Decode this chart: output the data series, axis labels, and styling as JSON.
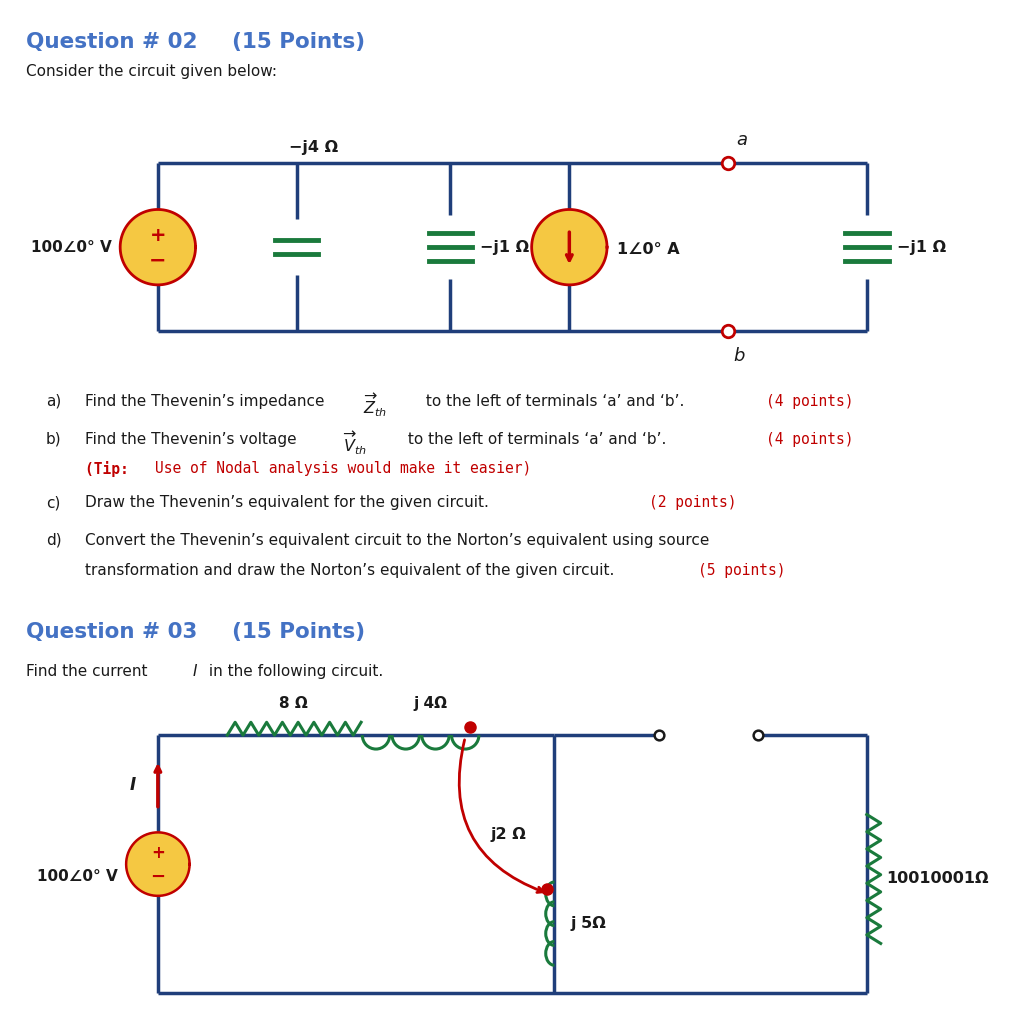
{
  "bg_color": "#ffffff",
  "title_color": "#4472C4",
  "black_color": "#1a1a1a",
  "green_color": "#1a7a3c",
  "red_color": "#C00000",
  "wire_color": "#1F3E7A",
  "cap_green": "#1a7a3c",
  "source_fill": "#F5C842",
  "q02_title": "Question # 02",
  "q02_points": "(15 Points)",
  "q03_title": "Question # 03",
  "q03_points": "(15 Points)"
}
